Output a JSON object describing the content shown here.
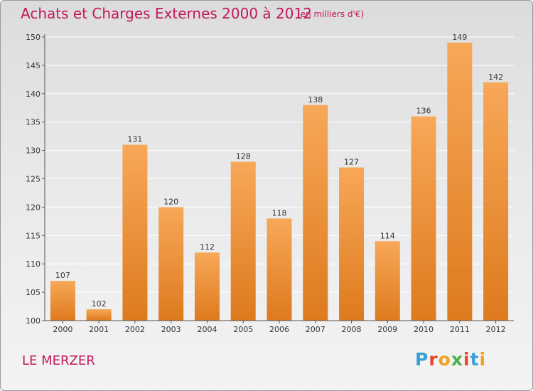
{
  "title": "Achats et Charges Externes 2000 à 2012",
  "subtitle": "(en milliers d'€)",
  "commune": "LE MERZER",
  "logo": {
    "text": "Proxiti",
    "letter_colors": [
      "#3aa0d8",
      "#e8452f",
      "#f2a11f",
      "#4caf50",
      "#e8452f",
      "#3aa0d8",
      "#f2a11f"
    ]
  },
  "colors": {
    "bar_light": "#f7a858",
    "bar_dark": "#de7a1e",
    "title": "#c2185b",
    "grid": "#ffffff",
    "axis": "#555555"
  },
  "chart_data": {
    "type": "bar",
    "categories": [
      "2000",
      "2001",
      "2002",
      "2003",
      "2004",
      "2005",
      "2006",
      "2007",
      "2008",
      "2009",
      "2010",
      "2011",
      "2012"
    ],
    "values": [
      107,
      102,
      131,
      120,
      112,
      128,
      118,
      138,
      127,
      114,
      136,
      149,
      142
    ],
    "ylim": [
      100,
      150
    ],
    "yticks": [
      100,
      105,
      110,
      115,
      120,
      125,
      130,
      135,
      140,
      145,
      150
    ],
    "grid": true,
    "legend": "none"
  }
}
